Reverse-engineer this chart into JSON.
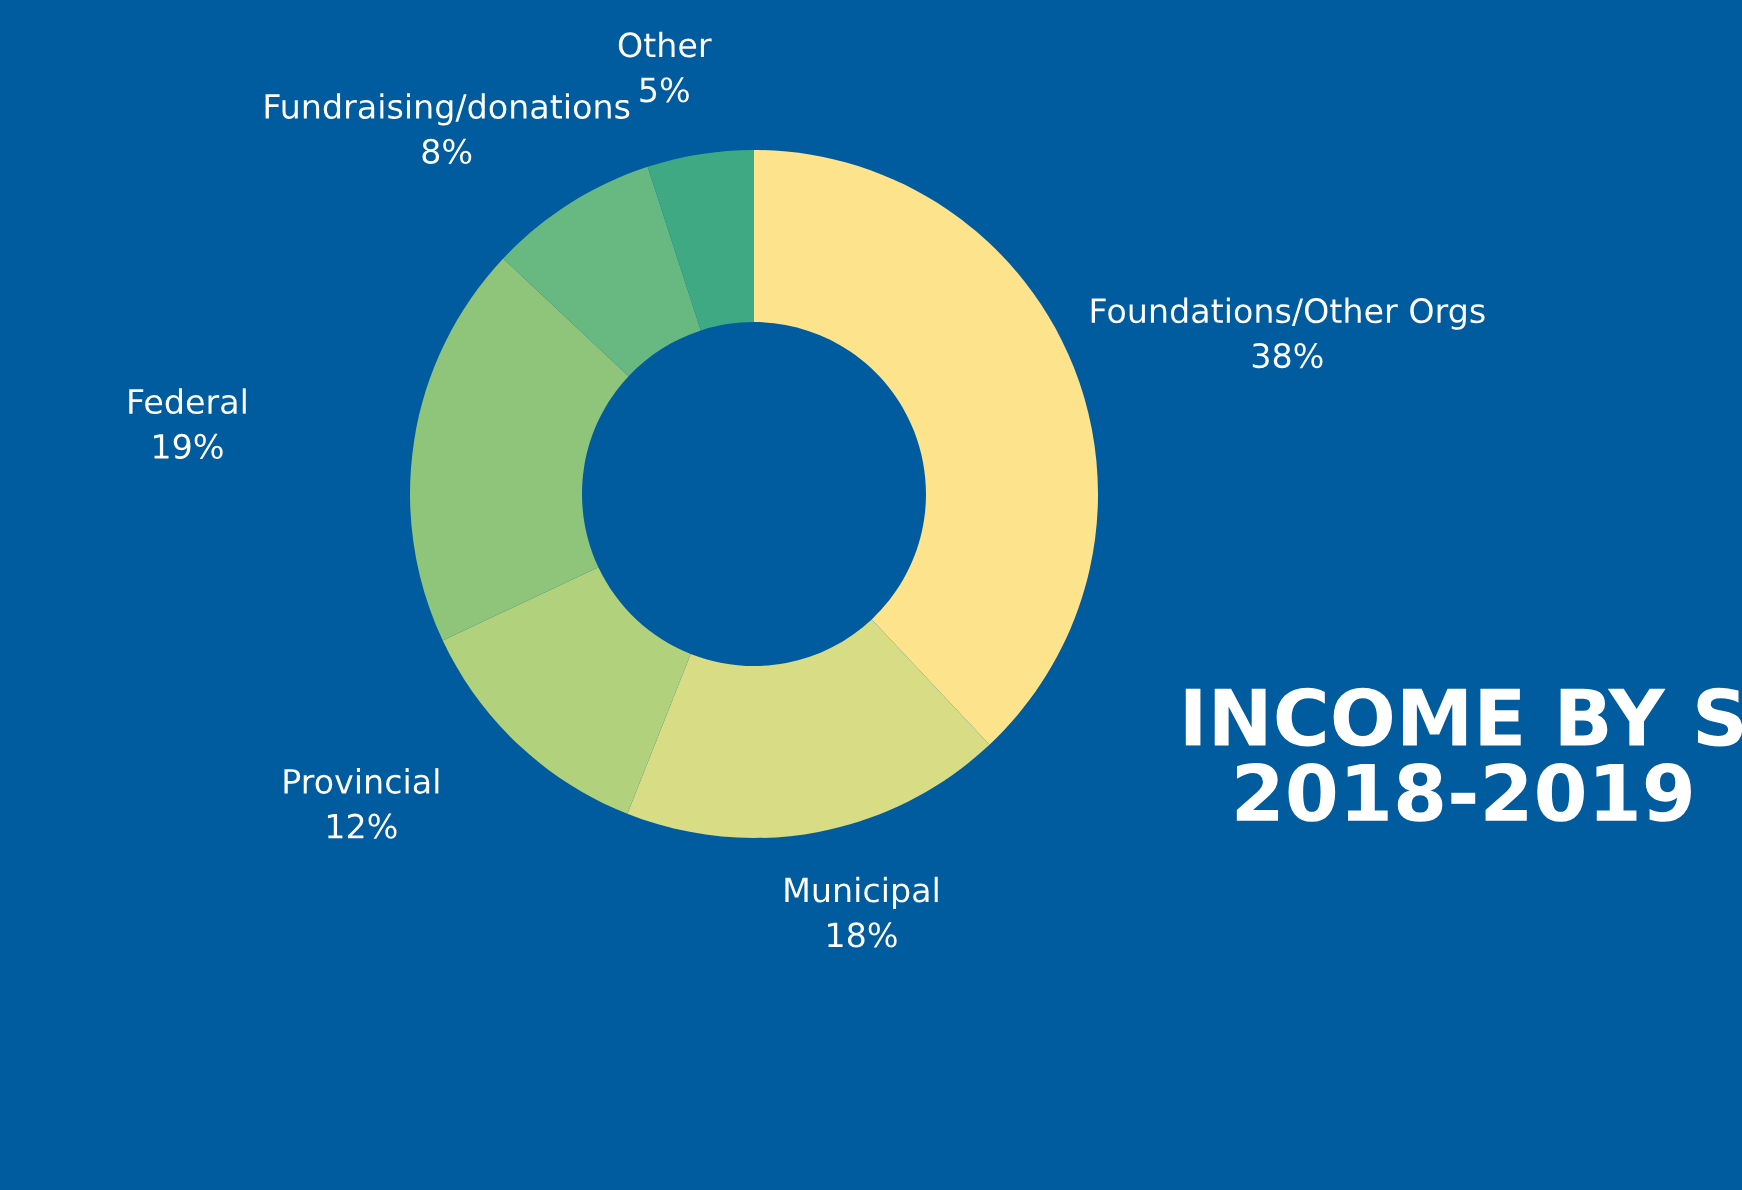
{
  "chart_data": {
    "type": "donut",
    "title": "INCOME BY S\n2018-2019",
    "categories": [
      "Foundations/Other Orgs",
      "Municipal",
      "Provincial",
      "Federal",
      "Fundraising/donations",
      "Other"
    ],
    "values": [
      38,
      18,
      12,
      19,
      8,
      5
    ],
    "value_labels": [
      "38%",
      "18%",
      "12%",
      "19%",
      "8%",
      "5%"
    ],
    "colors": [
      "#fee38d",
      "#d8dd85",
      "#b1d17d",
      "#8fc47b",
      "#68b882",
      "#3fa984"
    ],
    "legend": false
  }
}
